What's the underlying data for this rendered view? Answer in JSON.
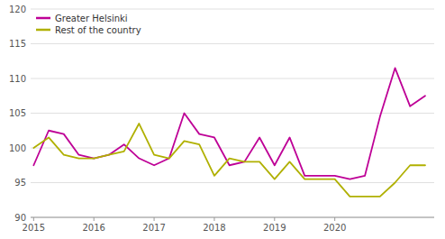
{
  "chart_data": {
    "type": "line",
    "x": [
      2015,
      2015.25,
      2015.5,
      2015.75,
      2016,
      2016.25,
      2016.5,
      2016.75,
      2017,
      2017.25,
      2017.5,
      2017.75,
      2018,
      2018.25,
      2018.5,
      2018.75,
      2019,
      2019.25,
      2019.5,
      2019.75,
      2020,
      2020.25,
      2020.5,
      2020.75,
      2021,
      2021.25,
      2021.5
    ],
    "series": [
      {
        "name": "Greater Helsinki",
        "color": "#be0096",
        "values": [
          97.5,
          102.5,
          102.0,
          99.0,
          98.5,
          99.0,
          100.5,
          98.5,
          97.5,
          98.5,
          105.0,
          102.0,
          101.5,
          97.5,
          98.0,
          101.5,
          97.5,
          101.5,
          96.0,
          96.0,
          96.0,
          95.5,
          96.0,
          104.5,
          111.5,
          106.0,
          107.5
        ]
      },
      {
        "name": "Rest of the country",
        "color": "#b0b000",
        "values": [
          100.0,
          101.5,
          99.0,
          98.5,
          98.5,
          99.0,
          99.5,
          103.5,
          99.0,
          98.5,
          101.0,
          100.5,
          96.0,
          98.5,
          98.0,
          98.0,
          95.5,
          98.0,
          95.5,
          95.5,
          95.5,
          93.0,
          93.0,
          93.0,
          95.0,
          97.5,
          97.5
        ]
      }
    ],
    "xlim": [
      2014.95,
      2021.65
    ],
    "xticks": [
      2015,
      2016,
      2017,
      2018,
      2019,
      2020
    ],
    "ylim": [
      90,
      120
    ],
    "yticks": [
      90,
      95,
      100,
      105,
      110,
      115,
      120
    ],
    "grid": true,
    "legend": "upper left"
  }
}
